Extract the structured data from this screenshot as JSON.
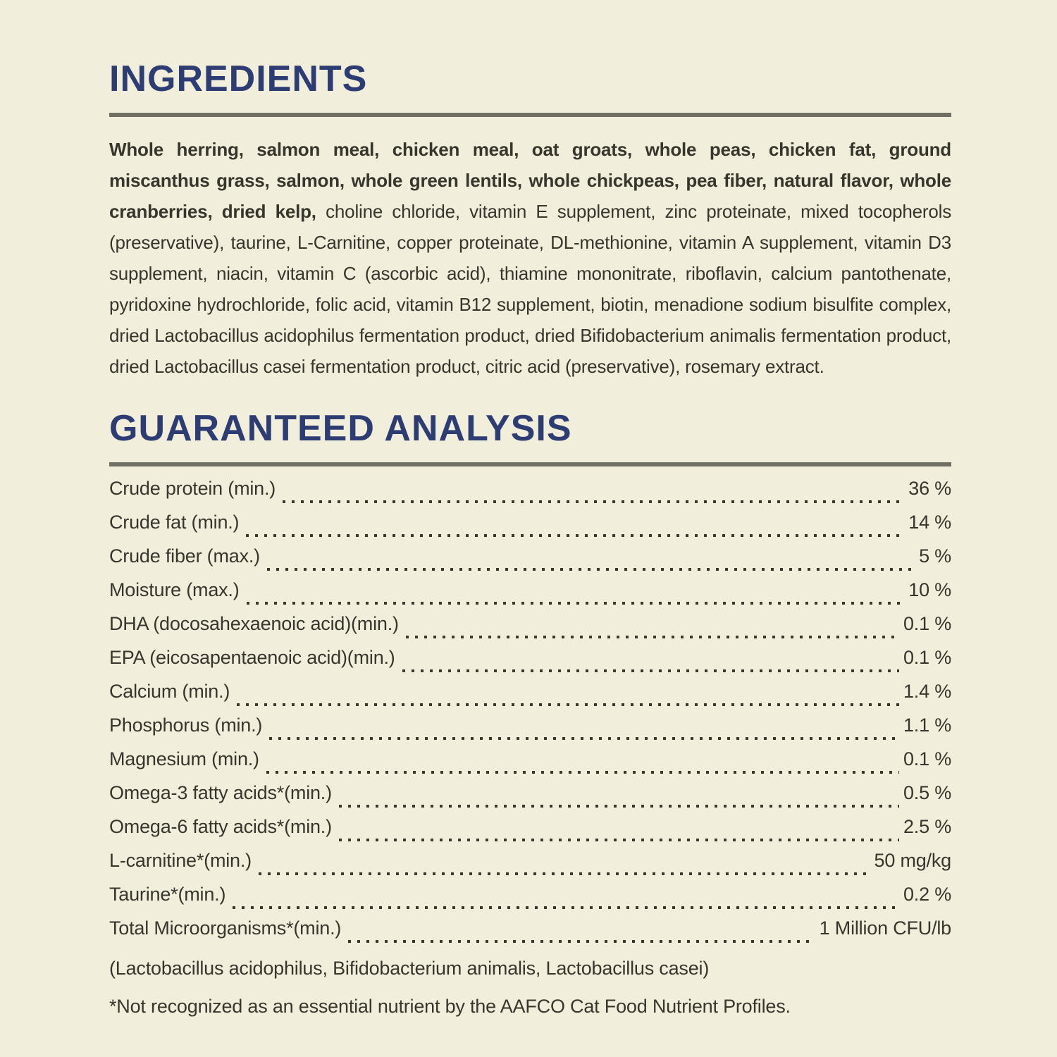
{
  "theme": {
    "background_color": "#f1eedc",
    "heading_color": "#2d3c72",
    "rule_color": "#6f6f64",
    "text_color": "#37362c"
  },
  "ingredients": {
    "title": "INGREDIENTS",
    "bold_text": "Whole herring, salmon meal, chicken meal, oat groats, whole peas, chicken fat, ground miscanthus grass, salmon, whole green lentils, whole chickpeas, pea fiber, natural flavor, whole cranberries, dried kelp,",
    "regular_text": " choline chloride, vitamin E supplement, zinc proteinate, mixed tocopherols (preservative), taurine, L-Carnitine, copper proteinate, DL-methionine, vitamin A supplement, vitamin D3 supplement, niacin, vitamin C (ascorbic acid), thiamine mononitrate, riboflavin, calcium pantothenate, pyridoxine hydrochloride, folic acid, vitamin B12 supplement, biotin, menadione sodium bisulfite complex, dried Lactobacillus acidophilus fermentation product, dried Bifidobacterium animalis fermentation product, dried Lactobacillus casei fermentation product, citric acid (preservative), rosemary extract."
  },
  "analysis": {
    "title": "GUARANTEED ANALYSIS",
    "rows": [
      {
        "label": "Crude protein (min.)",
        "value": "36 %"
      },
      {
        "label": "Crude fat (min.)",
        "value": "14 %"
      },
      {
        "label": "Crude fiber (max.)",
        "value": "5 %"
      },
      {
        "label": "Moisture (max.)",
        "value": "10 %"
      },
      {
        "label": "DHA (docosahexaenoic acid)(min.)",
        "value": "0.1 %"
      },
      {
        "label": "EPA (eicosapentaenoic acid)(min.)",
        "value": "0.1 %"
      },
      {
        "label": "Calcium (min.)",
        "value": "1.4 %"
      },
      {
        "label": "Phosphorus (min.)",
        "value": "1.1 %"
      },
      {
        "label": "Magnesium (min.)",
        "value": "0.1 %"
      },
      {
        "label": "Omega-3 fatty acids*(min.)",
        "value": "0.5 %"
      },
      {
        "label": "Omega-6 fatty acids*(min.)",
        "value": "2.5 %"
      },
      {
        "label": "L-carnitine*(min.)",
        "value": "50 mg/kg"
      },
      {
        "label": "Taurine*(min.)",
        "value": "0.2 %"
      },
      {
        "label": "Total Microorganisms*(min.)",
        "value": "1 Million CFU/lb"
      }
    ],
    "organisms_note": "(Lactobacillus acidophilus, Bifidobacterium animalis, Lactobacillus casei)",
    "footnote": "*Not recognized as an essential nutrient by the AAFCO Cat Food Nutrient Profiles."
  }
}
